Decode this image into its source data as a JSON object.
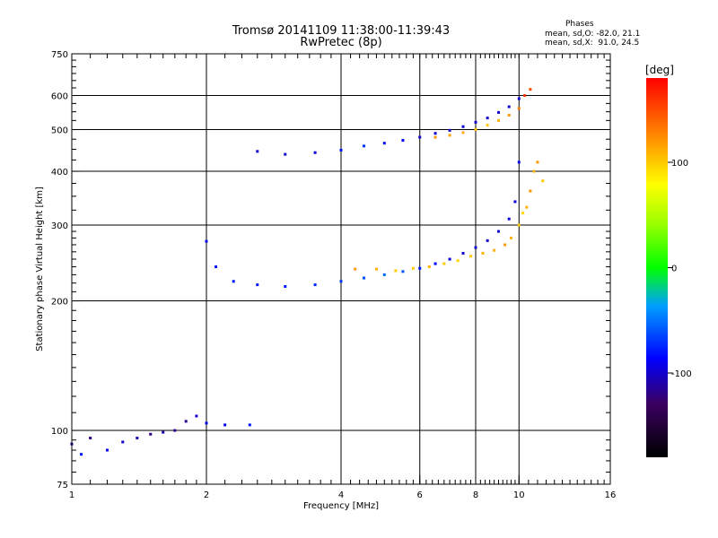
{
  "header": {
    "title": "Tromsø 20141109 11:38:00-11:39:43",
    "subtitle": "RwPretec (8p)",
    "phase_heading": "Phases",
    "stat_o": "mean, sd,O: -82.0, 21.1",
    "stat_x": "mean, sd,X:  91.0, 24.5"
  },
  "chart_data": {
    "type": "scatter",
    "xlabel": "Frequency [MHz]",
    "ylabel": "Stationary phase Virtual Height [km]",
    "xscale": "log",
    "yscale": "log",
    "xlim": [
      1,
      16
    ],
    "ylim": [
      75,
      750
    ],
    "x_ticks": [
      1,
      2,
      4,
      6,
      8,
      10,
      16
    ],
    "y_ticks": [
      75,
      100,
      200,
      300,
      400,
      500,
      600,
      750
    ],
    "x_grid": [
      2,
      4,
      6,
      8,
      10
    ],
    "y_grid": [
      100,
      200,
      300,
      400,
      500,
      600
    ],
    "grid": true,
    "colorbar": {
      "label": "[deg]",
      "range": [
        -180,
        180
      ],
      "ticks": [
        100,
        0,
        -100
      ]
    },
    "series": [
      {
        "x": [
          2.0,
          2.1,
          2.3,
          2.6,
          3.0,
          3.5,
          4.0,
          4.5,
          5.0,
          5.5,
          6.0,
          6.5,
          7.0,
          7.5,
          8.0,
          8.5,
          9.0,
          9.5,
          9.8,
          10.0
        ],
        "y": [
          275,
          240,
          222,
          218,
          216,
          218,
          222,
          226,
          230,
          234,
          238,
          244,
          250,
          258,
          266,
          276,
          290,
          310,
          340,
          420
        ],
        "phase": [
          -90,
          -85,
          -80,
          -80,
          -78,
          -75,
          -70,
          -60,
          -55,
          -60,
          -80,
          -90,
          -95,
          -100,
          -100,
          -100,
          -100,
          -95,
          -95,
          -90
        ]
      },
      {
        "x": [
          4.3,
          4.8,
          5.3,
          5.8,
          6.3,
          6.8,
          7.3,
          7.8,
          8.3,
          8.8,
          9.3,
          9.6,
          10.0,
          10.2,
          10.4,
          10.6,
          10.8,
          11.0,
          11.3
        ],
        "y": [
          237,
          237,
          235,
          238,
          240,
          244,
          248,
          254,
          258,
          262,
          270,
          280,
          300,
          320,
          330,
          360,
          400,
          420,
          380
        ],
        "phase": [
          120,
          110,
          100,
          100,
          110,
          100,
          95,
          100,
          110,
          110,
          120,
          110,
          100,
          95,
          110,
          120,
          110,
          120,
          100
        ]
      },
      {
        "x": [
          2.6,
          3.0,
          3.5,
          4.0,
          4.5,
          5.0,
          5.5,
          6.0,
          6.5,
          7.0,
          7.5,
          8.0,
          8.5,
          9.0,
          9.5,
          10.0
        ],
        "y": [
          445,
          438,
          442,
          448,
          458,
          465,
          472,
          480,
          490,
          498,
          508,
          520,
          532,
          548,
          565,
          590
        ],
        "phase": [
          -100,
          -100,
          -95,
          -80,
          -70,
          -90,
          -85,
          -100,
          -100,
          -100,
          -95,
          -100,
          -100,
          -100,
          -100,
          -100
        ]
      },
      {
        "x": [
          6.5,
          7.0,
          7.5,
          8.0,
          8.5,
          9.0,
          9.5,
          10.0,
          10.3,
          10.6
        ],
        "y": [
          480,
          485,
          492,
          500,
          512,
          525,
          540,
          560,
          600,
          620
        ],
        "phase": [
          120,
          115,
          110,
          105,
          100,
          110,
          120,
          130,
          160,
          150
        ]
      },
      {
        "x": [
          1.0,
          1.05,
          1.1,
          1.2,
          1.3,
          1.4,
          1.5,
          1.6,
          1.7,
          1.8,
          1.9,
          2.0,
          2.2,
          2.5
        ],
        "y": [
          93,
          88,
          96,
          90,
          94,
          96,
          98,
          99,
          100,
          105,
          108,
          104,
          103,
          103
        ],
        "phase": [
          -110,
          -80,
          -120,
          -90,
          -100,
          -110,
          -120,
          -110,
          -120,
          -115,
          -100,
          -90,
          -90,
          -80
        ]
      }
    ]
  }
}
